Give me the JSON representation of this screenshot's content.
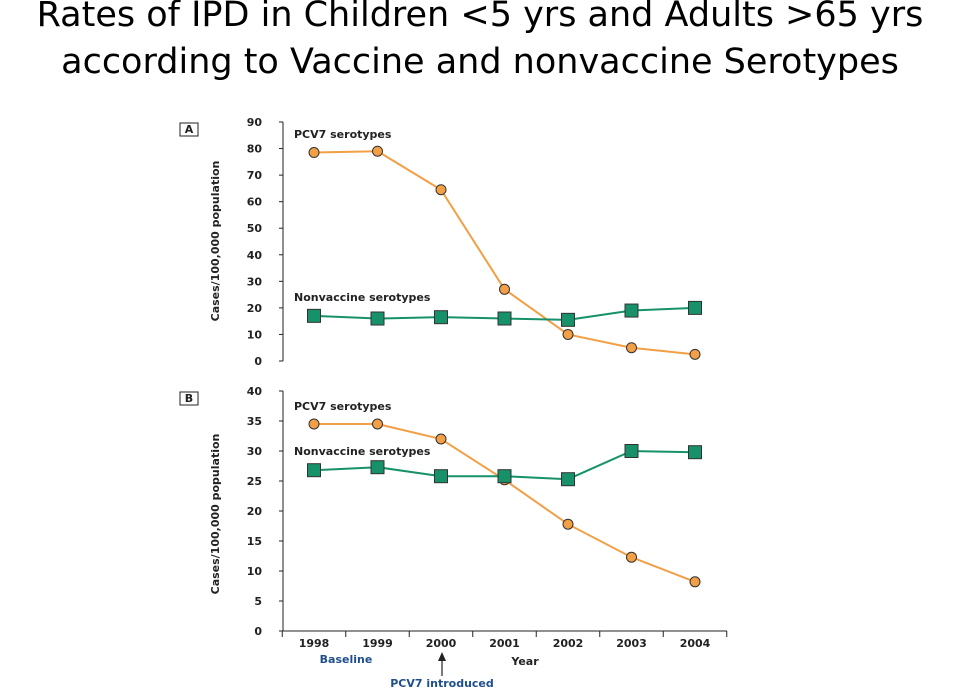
{
  "title_line1": "Rates of IPD in Children <5 yrs and Adults >65 yrs",
  "title_line2": "according to Vaccine and nonvaccine Serotypes",
  "colors": {
    "pcv7": "#f29f45",
    "nonvaccine": "#16916a",
    "axis": "#222222",
    "note": "#1f4e8c"
  },
  "chart_data": [
    {
      "type": "line",
      "panel": "A",
      "ylabel": "Cases/100,000 population",
      "ylim": [
        0,
        90
      ],
      "yticks": [
        0,
        10,
        20,
        30,
        40,
        50,
        60,
        70,
        80,
        90
      ],
      "categories": [
        "1998",
        "1999",
        "2000",
        "2001",
        "2002",
        "2003",
        "2004"
      ],
      "series": [
        {
          "name": "PCV7 serotypes",
          "marker": "circle",
          "values": [
            78.5,
            79,
            64.5,
            27,
            10,
            5,
            2.5
          ]
        },
        {
          "name": "Nonvaccine serotypes",
          "marker": "square",
          "values": [
            17,
            16,
            16.5,
            16,
            15.5,
            19,
            20
          ]
        }
      ]
    },
    {
      "type": "line",
      "panel": "B",
      "ylabel": "Cases/100,000 population",
      "ylim": [
        0,
        40
      ],
      "yticks": [
        0,
        5,
        10,
        15,
        20,
        25,
        30,
        35,
        40
      ],
      "categories": [
        "1998",
        "1999",
        "2000",
        "2001",
        "2002",
        "2003",
        "2004"
      ],
      "xlabel": "Year",
      "series": [
        {
          "name": "PCV7 serotypes",
          "marker": "circle",
          "values": [
            34.5,
            34.5,
            32,
            25.2,
            17.8,
            12.3,
            8.2
          ]
        },
        {
          "name": "Nonvaccine serotypes",
          "marker": "square",
          "values": [
            26.8,
            27.3,
            25.8,
            25.8,
            25.3,
            30,
            29.8
          ]
        }
      ]
    }
  ],
  "annotations": {
    "baseline": "Baseline",
    "introduced": "PCV7 introduced"
  }
}
